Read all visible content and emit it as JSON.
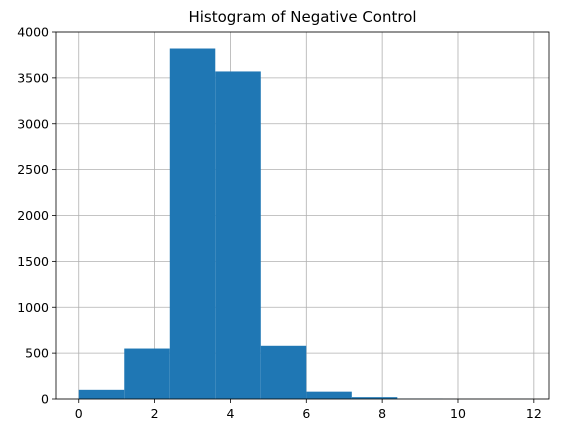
{
  "chart_data": {
    "type": "bar",
    "title": "Histogram of Negative Control",
    "xlabel": "",
    "ylabel": "",
    "xlim": [
      -0.6,
      12.4
    ],
    "ylim": [
      0,
      4000
    ],
    "xticks": [
      0,
      2,
      4,
      6,
      8,
      10,
      12
    ],
    "yticks": [
      0,
      500,
      1000,
      1500,
      2000,
      2500,
      3000,
      3500,
      4000
    ],
    "bins": [
      {
        "x0": 0.0,
        "x1": 1.2,
        "value": 100
      },
      {
        "x0": 1.2,
        "x1": 2.4,
        "value": 550
      },
      {
        "x0": 2.4,
        "x1": 3.6,
        "value": 3820
      },
      {
        "x0": 3.6,
        "x1": 4.8,
        "value": 3570
      },
      {
        "x0": 4.8,
        "x1": 6.0,
        "value": 580
      },
      {
        "x0": 6.0,
        "x1": 7.2,
        "value": 80
      },
      {
        "x0": 7.2,
        "x1": 8.4,
        "value": 20
      },
      {
        "x0": 8.4,
        "x1": 9.6,
        "value": 3
      },
      {
        "x0": 9.6,
        "x1": 10.8,
        "value": 1
      },
      {
        "x0": 10.8,
        "x1": 12.0,
        "value": 1
      }
    ],
    "grid": true,
    "bar_color": "#1f77b4"
  }
}
